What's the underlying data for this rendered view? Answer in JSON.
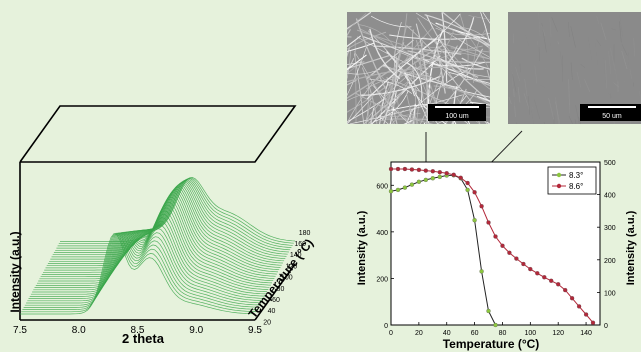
{
  "colors": {
    "background": "#e6f2dc",
    "waterfall_line": "#3aa64a",
    "series_8_3": "#8cc63f",
    "series_8_6": "#b3283a",
    "series_8_3_line": "#222222",
    "series_8_6_line": "#b3283a",
    "sem_bg": "#8e8e8e"
  },
  "sem_images": [
    {
      "scale_label": "100 um",
      "texture": "fibers"
    },
    {
      "scale_label": "50 um",
      "texture": "smooth"
    }
  ],
  "chart_data": [
    {
      "type": "line",
      "subtype": "3d-waterfall",
      "xlabel": "2 theta",
      "ylabel": "Intensity (a.u.)",
      "zlabel": "Temperature (°C)",
      "x_ticks": [
        "7.5",
        "8.0",
        "8.5",
        "9.0",
        "9.5"
      ],
      "xlim": [
        7.5,
        9.5
      ],
      "z_ticks": [
        "20",
        "40",
        "60",
        "80",
        "100",
        "120",
        "140",
        "160",
        "180"
      ],
      "zlim": [
        20,
        190
      ],
      "peaks": [
        {
          "name": "",
          "x": 8.3
        },
        {
          "name": "",
          "x": 8.6
        }
      ],
      "curves_count": 34
    },
    {
      "type": "line",
      "xlabel": "Temperature (°C)",
      "ylabel": "Intensity (a.u.)",
      "ylabel_right": "Intensity (a.u.)",
      "x_ticks": [
        "0",
        "20",
        "40",
        "60",
        "80",
        "100",
        "120",
        "140"
      ],
      "xlim": [
        0,
        150
      ],
      "y_ticks_left": [
        "0",
        "200",
        "400",
        "600"
      ],
      "ylim_left": [
        0,
        700
      ],
      "y_ticks_right": [
        "0",
        "100",
        "200",
        "300",
        "400",
        "500"
      ],
      "ylim_right": [
        0,
        500
      ],
      "legend_position": "top-right",
      "series": [
        {
          "name": "8.3°",
          "axis": "left",
          "x": [
            0,
            5,
            10,
            15,
            20,
            25,
            30,
            35,
            40,
            45,
            50,
            55,
            60,
            65,
            70,
            75
          ],
          "y": [
            574,
            580,
            590,
            603,
            615,
            623,
            630,
            636,
            642,
            643,
            630,
            580,
            450,
            230,
            60,
            0
          ]
        },
        {
          "name": "8.6°",
          "axis": "left",
          "x": [
            0,
            5,
            10,
            15,
            20,
            25,
            30,
            35,
            40,
            45,
            50,
            55,
            60,
            65,
            70,
            75,
            80,
            85,
            90,
            95,
            100,
            105,
            110,
            115,
            120,
            125,
            130,
            135,
            140,
            145
          ],
          "y": [
            670,
            670,
            670,
            668,
            666,
            663,
            660,
            656,
            652,
            645,
            632,
            610,
            570,
            510,
            440,
            380,
            340,
            310,
            285,
            262,
            240,
            222,
            205,
            190,
            175,
            150,
            115,
            80,
            45,
            10
          ]
        }
      ]
    }
  ]
}
